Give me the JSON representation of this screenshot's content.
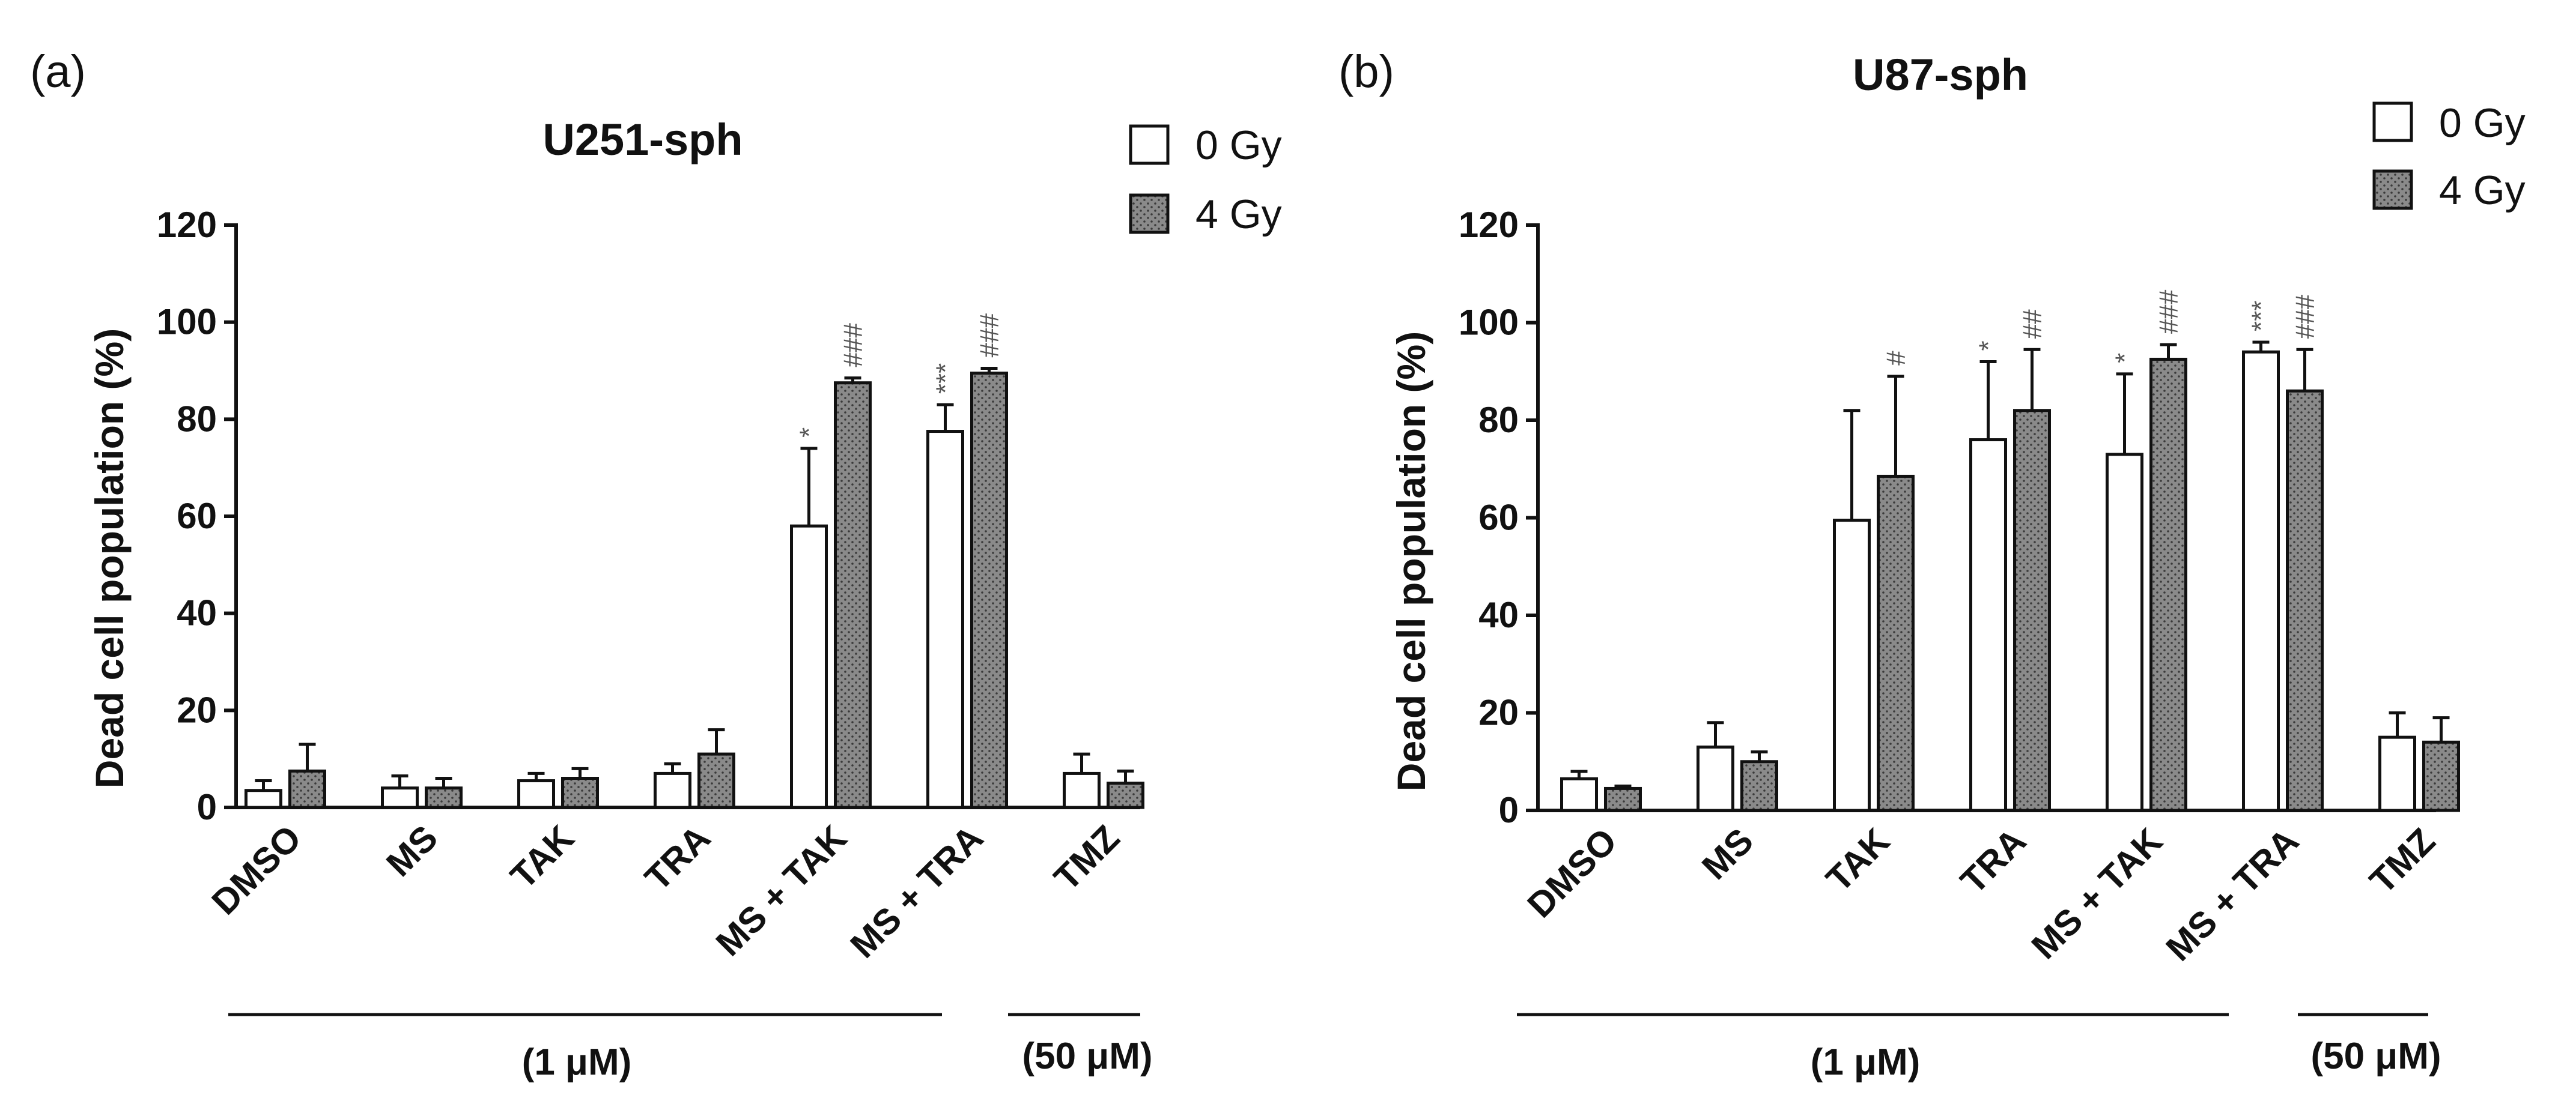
{
  "chart_data": [
    {
      "panel_label": "(a)",
      "type": "bar",
      "title": "U251-sph",
      "ylabel": "Dead cell population (%)",
      "xlabel": "",
      "ylim": [
        0,
        120
      ],
      "yticks": [
        "0",
        "20",
        "40",
        "60",
        "80",
        "100",
        "120"
      ],
      "categories": [
        "DMSO",
        "MS",
        "TAK",
        "TRA",
        "MS + TAK",
        "MS + TRA",
        "TMZ"
      ],
      "legend_position": "top-right",
      "series": [
        {
          "name": "0 Gy",
          "fill": "#ffffff",
          "values": [
            3.5,
            4,
            5.5,
            7,
            58,
            77.5,
            7
          ],
          "errors": [
            2,
            2.5,
            1.5,
            2,
            16,
            5.5,
            4
          ],
          "annotations": [
            "",
            "",
            "",
            "",
            "*",
            "***",
            ""
          ]
        },
        {
          "name": "4 Gy",
          "fill": "#8a8a8a",
          "values": [
            7.5,
            4,
            6,
            11,
            87.5,
            89.5,
            5
          ],
          "errors": [
            5.5,
            2,
            2,
            5,
            1,
            1,
            2.5
          ],
          "annotations": [
            "",
            "",
            "",
            "",
            "###",
            "###",
            ""
          ]
        }
      ],
      "groups": [
        {
          "label": "(1 μM)",
          "from": 0,
          "to": 5
        },
        {
          "label": "(50 μM)",
          "from": 6,
          "to": 6
        }
      ]
    },
    {
      "panel_label": "(b)",
      "type": "bar",
      "title": "U87-sph",
      "ylabel": "Dead cell population (%)",
      "xlabel": "",
      "ylim": [
        0,
        120
      ],
      "yticks": [
        "0",
        "20",
        "40",
        "60",
        "80",
        "100",
        "120"
      ],
      "categories": [
        "DMSO",
        "MS",
        "TAK",
        "TRA",
        "MS + TAK",
        "MS + TRA",
        "TMZ"
      ],
      "legend_position": "top-right",
      "series": [
        {
          "name": "0 Gy",
          "fill": "#ffffff",
          "values": [
            6.5,
            13,
            59.5,
            76,
            73,
            94,
            15
          ],
          "errors": [
            1.5,
            5,
            22.5,
            16,
            16.5,
            2,
            5
          ],
          "annotations": [
            "",
            "",
            "",
            "*",
            "*",
            "***",
            ""
          ]
        },
        {
          "name": "4 Gy",
          "fill": "#8a8a8a",
          "values": [
            4.5,
            10,
            68.5,
            82,
            92.5,
            86,
            14
          ],
          "errors": [
            0.5,
            2,
            20.5,
            12.5,
            3,
            8.5,
            5
          ],
          "annotations": [
            "",
            "",
            "#",
            "##",
            "###",
            "###",
            ""
          ]
        }
      ],
      "groups": [
        {
          "label": "(1 μM)",
          "from": 0,
          "to": 5
        },
        {
          "label": "(50 μM)",
          "from": 6,
          "to": 6
        }
      ]
    }
  ]
}
